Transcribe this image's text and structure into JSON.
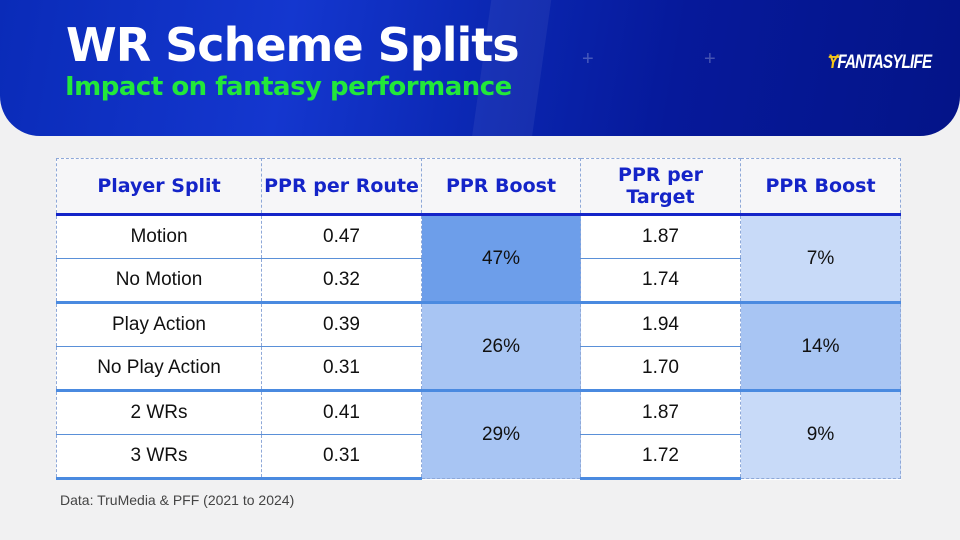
{
  "header": {
    "title": "WR Scheme Splits",
    "subtitle": "Impact on fantasy performance",
    "logo": "FANTASYLIFE"
  },
  "chart_data": {
    "type": "table",
    "columns": [
      "Player Split",
      "PPR per Route",
      "PPR Boost",
      "PPR per Target",
      "PPR Boost"
    ],
    "groups": [
      {
        "rows": [
          {
            "split": "Motion",
            "route": "0.47",
            "target": "1.87"
          },
          {
            "split": "No Motion",
            "route": "0.32",
            "target": "1.74"
          }
        ],
        "route_boost": "47%",
        "target_boost": "7%",
        "route_boost_color": "#6d9eea",
        "target_boost_color": "#c8daf8"
      },
      {
        "rows": [
          {
            "split": "Play Action",
            "route": "0.39",
            "target": "1.94"
          },
          {
            "split": "No Play Action",
            "route": "0.31",
            "target": "1.70"
          }
        ],
        "route_boost": "26%",
        "target_boost": "14%",
        "route_boost_color": "#a8c5f3",
        "target_boost_color": "#a8c5f3"
      },
      {
        "rows": [
          {
            "split": "2 WRs",
            "route": "0.41",
            "target": "1.87"
          },
          {
            "split": "3 WRs",
            "route": "0.31",
            "target": "1.72"
          }
        ],
        "route_boost": "29%",
        "target_boost": "9%",
        "route_boost_color": "#a8c5f3",
        "target_boost_color": "#c8daf8"
      }
    ]
  },
  "footer": {
    "source": "Data: TruMedia & PFF (2021 to 2024)"
  }
}
